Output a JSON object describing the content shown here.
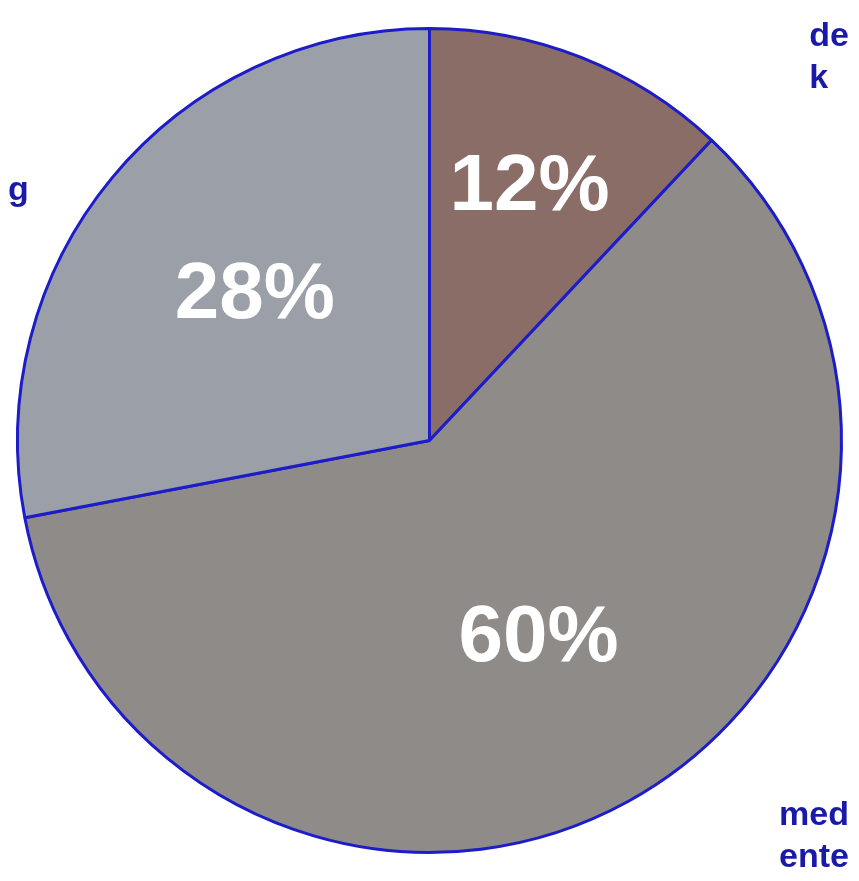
{
  "chart_data": {
    "type": "pie",
    "categories": [
      "de k",
      "med ente",
      "g"
    ],
    "values": [
      12,
      60,
      28
    ],
    "value_labels": [
      "12%",
      "60%",
      "28%"
    ],
    "colors": [
      "#8a6d66",
      "#8e8b88",
      "#9ba0a8"
    ],
    "data_labels": true
  }
}
